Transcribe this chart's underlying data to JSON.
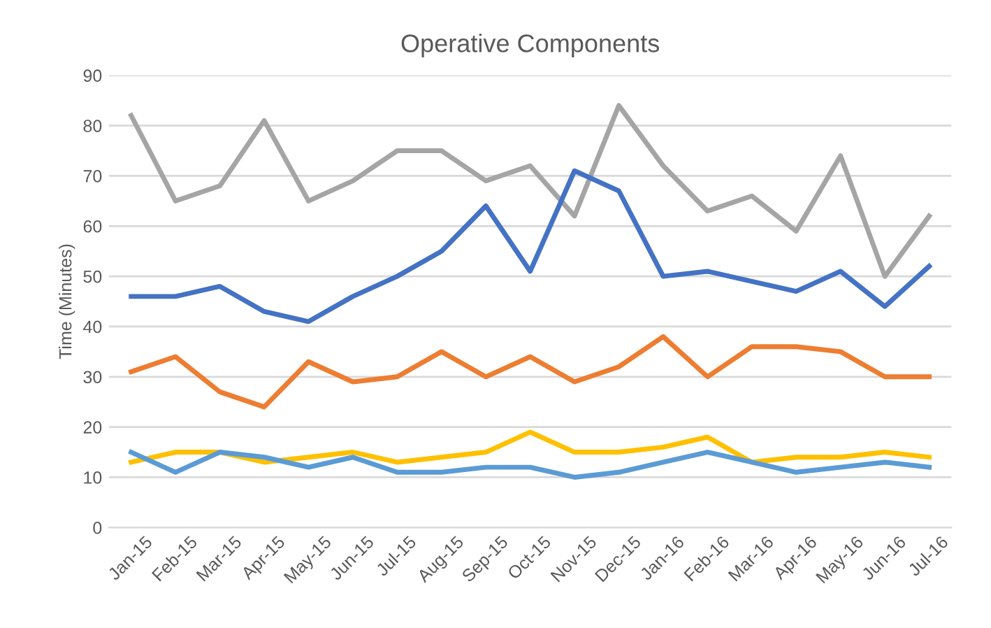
{
  "chart_data": {
    "type": "line",
    "title": "Operative Components",
    "ylabel": "Time (Minutes)",
    "categories": [
      "Jan-15",
      "Feb-15",
      "Mar-15",
      "Apr-15",
      "May-15",
      "Jun-15",
      "Jul-15",
      "Aug-15",
      "Sep-15",
      "Oct-15",
      "Nov-15",
      "Dec-15",
      "Jan-16",
      "Feb-16",
      "Mar-16",
      "Apr-16",
      "May-16",
      "Jun-16",
      "Jul-16"
    ],
    "series": [
      {
        "color": "#a5a5a5",
        "values": [
          82,
          65,
          68,
          81,
          65,
          69,
          75,
          75,
          69,
          72,
          62,
          84,
          72,
          63,
          66,
          59,
          74,
          50,
          62
        ]
      },
      {
        "color": "#4472c4",
        "values": [
          46,
          46,
          48,
          43,
          41,
          46,
          50,
          55,
          64,
          51,
          71,
          67,
          50,
          51,
          49,
          47,
          51,
          44,
          52
        ]
      },
      {
        "color": "#ed7d31",
        "values": [
          31,
          34,
          27,
          24,
          33,
          29,
          30,
          35,
          30,
          34,
          29,
          32,
          38,
          30,
          36,
          36,
          35,
          30,
          30
        ]
      },
      {
        "color": "#ffc000",
        "values": [
          13,
          15,
          15,
          13,
          14,
          15,
          13,
          14,
          15,
          19,
          15,
          15,
          16,
          18,
          13,
          14,
          14,
          15,
          14
        ]
      },
      {
        "color": "#5b9bd5",
        "values": [
          15,
          11,
          15,
          14,
          12,
          14,
          11,
          11,
          12,
          12,
          10,
          11,
          13,
          15,
          13,
          11,
          12,
          13,
          12
        ]
      }
    ],
    "ylim": [
      0,
      90
    ],
    "yticks": [
      0,
      10,
      20,
      30,
      40,
      50,
      60,
      70,
      80,
      90
    ],
    "grid": "y",
    "marker": "none",
    "line_style": "solid"
  }
}
